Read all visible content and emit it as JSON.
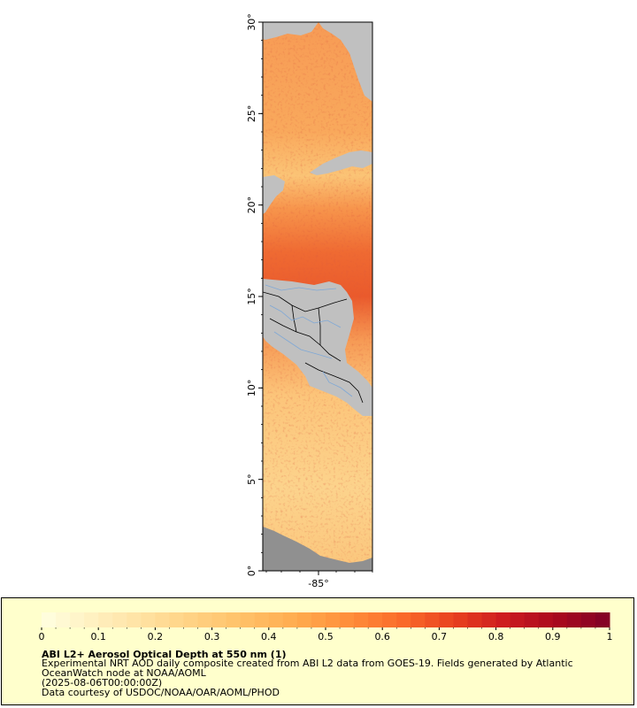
{
  "map": {
    "lat_ticks": [
      "0°",
      "5°",
      "10°",
      "15°",
      "20°",
      "25°",
      "30°"
    ],
    "lon_ticks": [
      "-85°"
    ],
    "lat_range": [
      0,
      30
    ],
    "colors": {
      "land": "#c0c0c0",
      "nodata": "#909090",
      "border": "#000000",
      "river": "#7fa8d6"
    }
  },
  "legend": {
    "title": "ABI L2+ Aerosol Optical Depth at 550 nm (1)",
    "description_line1": "Experimental NRT AOD daily composite created from ABI L2 data from GOES-19. Fields generated by Atlantic",
    "description_line2": "OceanWatch node at NOAA/AOML",
    "date": "(2025-08-06T00:00:00Z)",
    "credit": "Data courtesy of USDOC/NOAA/OAR/AOML/PHOD",
    "range": [
      0,
      1
    ],
    "tick_labels": [
      "0",
      "0.1",
      "0.2",
      "0.3",
      "0.4",
      "0.5",
      "0.6",
      "0.7",
      "0.8",
      "0.9",
      "1"
    ],
    "palette": [
      "#ffffe0",
      "#fff0c0",
      "#ffe1a0",
      "#ffd080",
      "#ffbf66",
      "#ffaa4d",
      "#ff8c3a",
      "#fa6a2a",
      "#e8401f",
      "#cc1a1f",
      "#a8081e",
      "#800026"
    ]
  }
}
